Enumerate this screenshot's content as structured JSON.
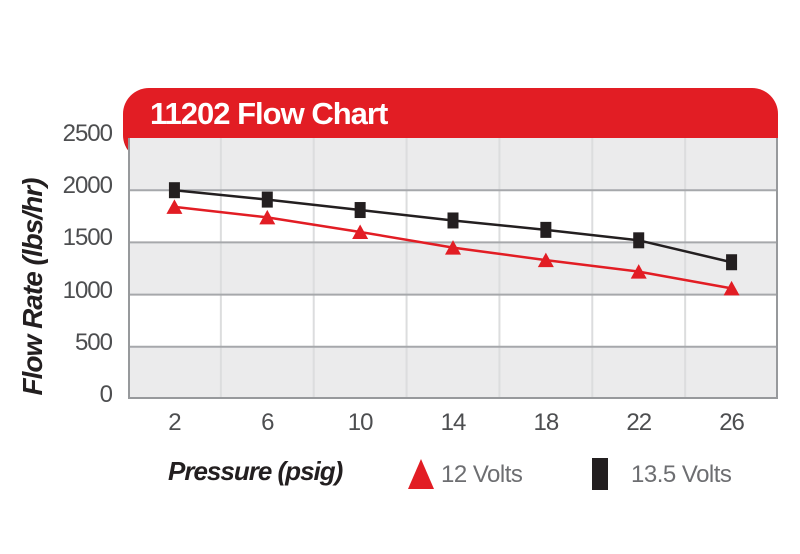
{
  "header": {
    "title": "11202 Flow Chart",
    "bg_color": "#e21d24",
    "text_color": "#ffffff"
  },
  "chart_data": {
    "type": "line",
    "title": "11202 Flow Chart",
    "xlabel": "Pressure (psig)",
    "ylabel": "Flow Rate (lbs/hr)",
    "categories": [
      2,
      6,
      10,
      14,
      18,
      22,
      26
    ],
    "y_ticks": [
      0,
      500,
      1000,
      1500,
      2000,
      2500
    ],
    "ylim": [
      0,
      2500
    ],
    "grid": {
      "horizontal_major": true,
      "vertical_category_separators": true,
      "background_bands": "alternating gray/white per 500 units"
    },
    "legend_position": "bottom",
    "series": [
      {
        "name": "12 Volts",
        "marker": "triangle",
        "color": "#e21d24",
        "values": [
          1840,
          1740,
          1600,
          1450,
          1330,
          1220,
          1060
        ]
      },
      {
        "name": "13.5 Volts",
        "marker": "square",
        "color": "#231f20",
        "values": [
          2000,
          1910,
          1810,
          1710,
          1620,
          1520,
          1310
        ]
      }
    ]
  },
  "colors": {
    "band_gray": "#ebebec",
    "band_white": "#ffffff",
    "grid_horizontal": "#a6a8ab",
    "grid_vertical": "#dcddde",
    "plot_border": "#97999c",
    "tick_text": "#4d4e50",
    "axis_title_text": "#231f20",
    "legend_text": "#6d6e71",
    "series_red": "#e21d24",
    "series_black": "#231f20"
  }
}
